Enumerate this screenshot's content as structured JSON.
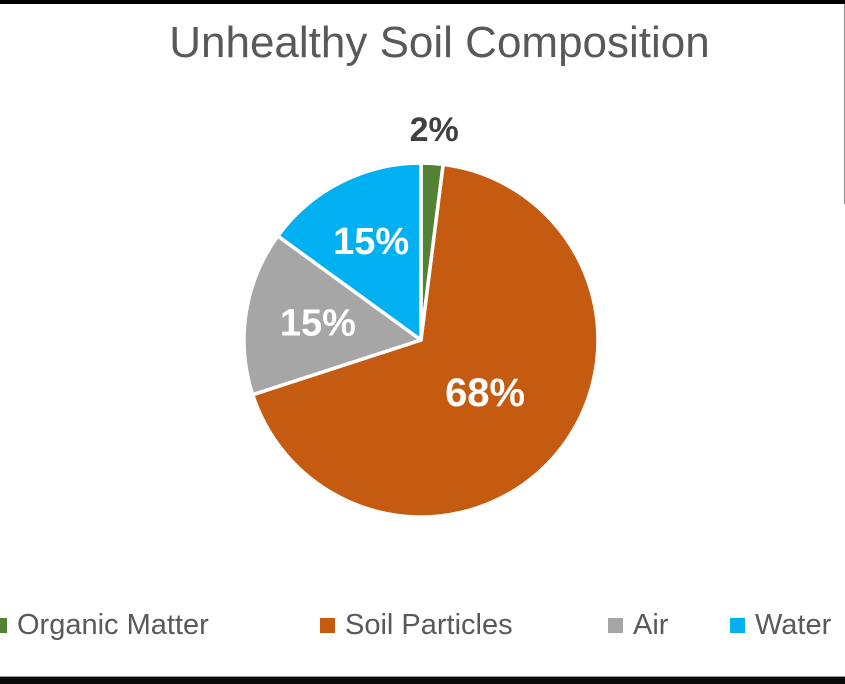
{
  "page": {
    "background_color": "#FFFFFF",
    "top_bar_color": "#000000",
    "bottom_bar_color": "#0A0A0A"
  },
  "chart_data": {
    "type": "pie",
    "title": "Unhealthy Soil Composition",
    "title_color": "#595959",
    "legend_position": "bottom",
    "legend_text_color": "#595959",
    "slice_border_color": "#FFFFFF",
    "start_angle_deg": 0,
    "direction": "clockwise",
    "categories": [
      "Organic Matter",
      "Soil Particles",
      "Air",
      "Water"
    ],
    "values": [
      2,
      68,
      15,
      15
    ],
    "slices": [
      {
        "label": "Organic Matter",
        "value": 2,
        "display": "2%",
        "color": "#548235",
        "label_color": "#404040",
        "label_inside": false
      },
      {
        "label": "Soil Particles",
        "value": 68,
        "display": "68%",
        "color": "#C55A11",
        "label_color": "#FFFFFF",
        "label_inside": true
      },
      {
        "label": "Air",
        "value": 15,
        "display": "15%",
        "color": "#A6A6A6",
        "label_color": "#FFFFFF",
        "label_inside": true
      },
      {
        "label": "Water",
        "value": 15,
        "display": "15%",
        "color": "#00B0F0",
        "label_color": "#FFFFFF",
        "label_inside": true
      }
    ]
  }
}
